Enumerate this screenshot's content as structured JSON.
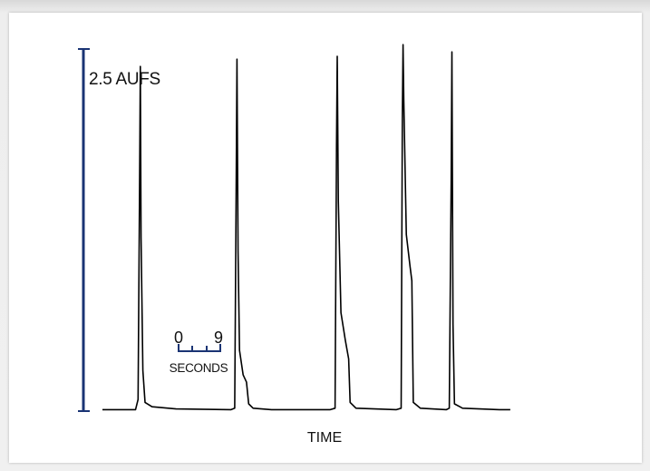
{
  "chart_data": {
    "type": "line",
    "title": "",
    "scale_label": "2.5 AUFS",
    "xlabel": "TIME",
    "time_scale": {
      "label": "SECONDS",
      "start_label": "0",
      "end_label": "9",
      "start_s": 0,
      "end_s": 9
    },
    "x_unit": "seconds",
    "x_range": [
      0,
      131
    ],
    "y_unit": "AUFS",
    "ylim": [
      0,
      2.5
    ],
    "grid": false,
    "colors": {
      "trace": "#000000",
      "scale_bar": "#1a3474"
    },
    "series": [
      {
        "values": [
          [
            0,
            0.01
          ],
          [
            9.0,
            0.01
          ],
          [
            9.7,
            0.08
          ],
          [
            10.1,
            1.5
          ],
          [
            10.3,
            2.38
          ],
          [
            10.5,
            1.2
          ],
          [
            11.0,
            0.28
          ],
          [
            11.6,
            0.06
          ],
          [
            13.5,
            0.03
          ],
          [
            20,
            0.015
          ],
          [
            35.0,
            0.01
          ],
          [
            36.0,
            0.02
          ],
          [
            36.4,
            1.52
          ],
          [
            36.6,
            2.43
          ],
          [
            36.9,
            1.1
          ],
          [
            37.3,
            0.42
          ],
          [
            38.3,
            0.25
          ],
          [
            39.2,
            0.2
          ],
          [
            39.8,
            0.05
          ],
          [
            41.0,
            0.02
          ],
          [
            46,
            0.01
          ],
          [
            62.0,
            0.01
          ],
          [
            63.3,
            0.02
          ],
          [
            63.7,
            1.82
          ],
          [
            63.9,
            2.45
          ],
          [
            64.2,
            1.45
          ],
          [
            64.9,
            0.68
          ],
          [
            66.1,
            0.49
          ],
          [
            67.0,
            0.36
          ],
          [
            67.4,
            0.06
          ],
          [
            69.0,
            0.02
          ],
          [
            80.0,
            0.01
          ],
          [
            81.3,
            0.02
          ],
          [
            81.6,
            2.0
          ],
          [
            81.8,
            2.53
          ],
          [
            82.0,
            2.15
          ],
          [
            82.7,
            1.22
          ],
          [
            83.7,
            1.0
          ],
          [
            84.2,
            0.9
          ],
          [
            84.6,
            0.06
          ],
          [
            86.5,
            0.02
          ],
          [
            93.6,
            0.01
          ],
          [
            94.4,
            0.02
          ],
          [
            94.9,
            1.6
          ],
          [
            95.1,
            2.48
          ],
          [
            95.4,
            0.6
          ],
          [
            95.8,
            0.05
          ],
          [
            98,
            0.02
          ],
          [
            108,
            0.01
          ],
          [
            111.0,
            0.01
          ]
        ]
      }
    ]
  }
}
